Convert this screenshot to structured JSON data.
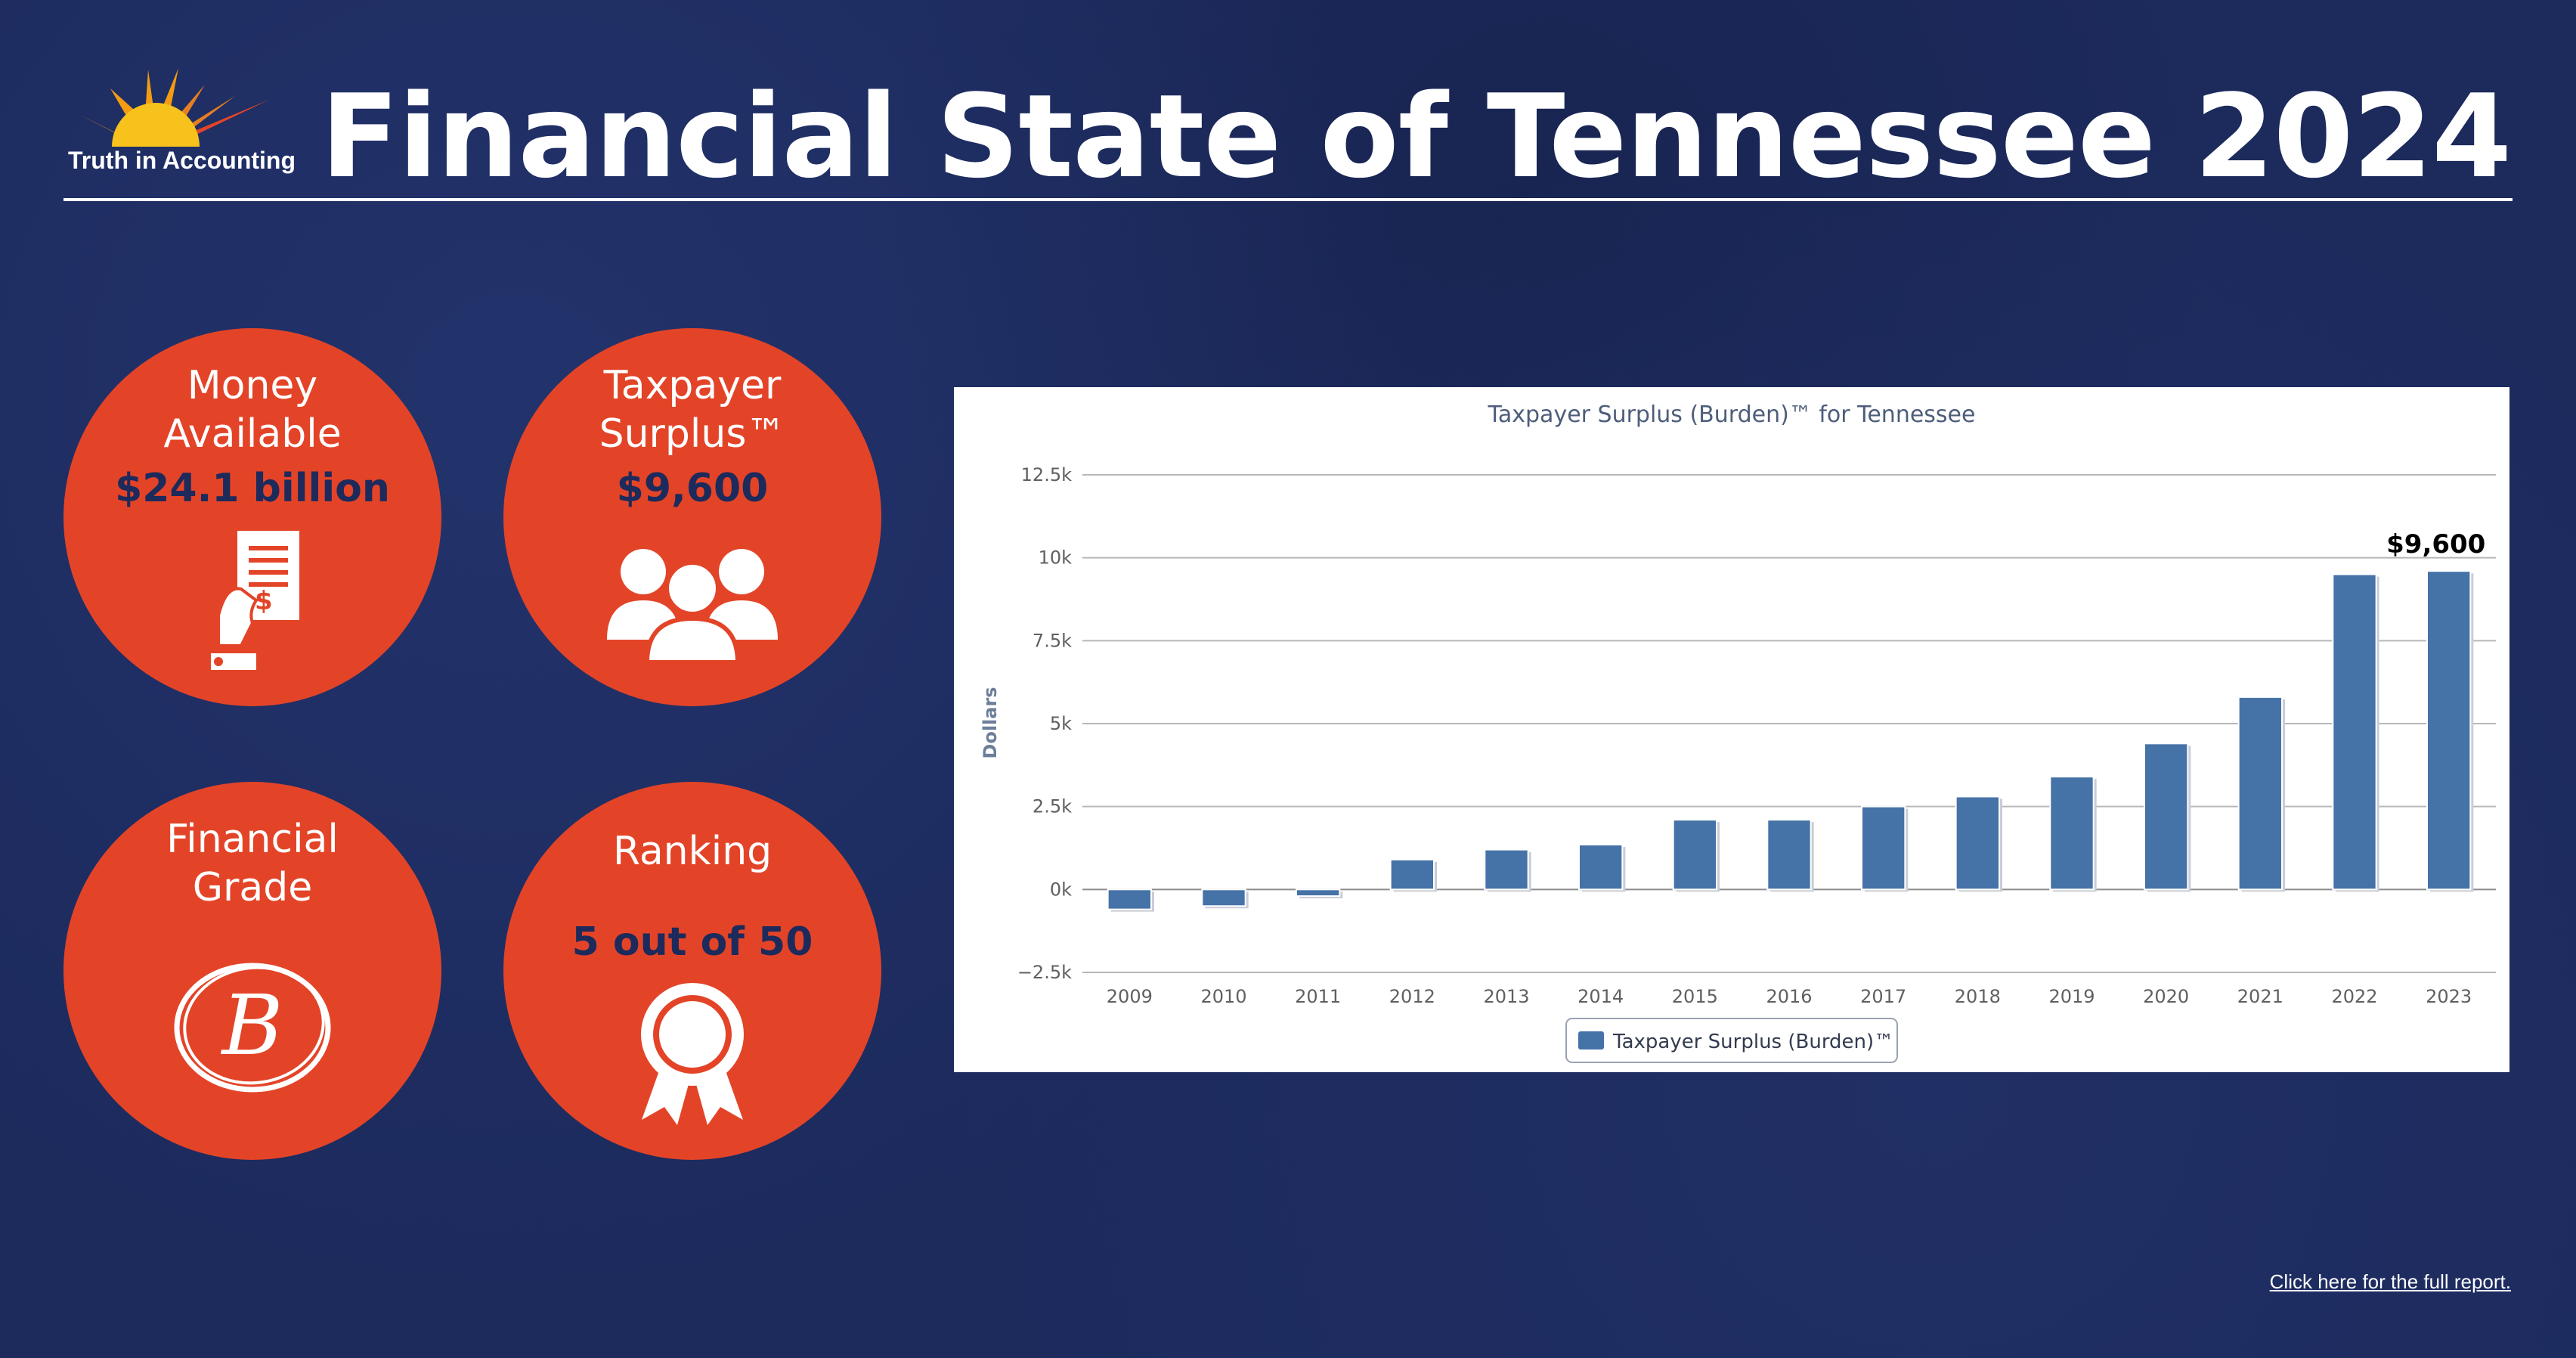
{
  "header": {
    "logo_text": "Truth in Accounting",
    "title": "Financial State of Tennessee 2024"
  },
  "stats": {
    "money_available": {
      "label_line1": "Money",
      "label_line2": "Available",
      "value": "$24.1 billion",
      "icon": "invoice-hand-icon"
    },
    "taxpayer_surplus": {
      "label_line1": "Taxpayer",
      "label_line2": "Surplus™",
      "value": "$9,600",
      "icon": "people-group-icon"
    },
    "financial_grade": {
      "label_line1": "Financial",
      "label_line2": "Grade",
      "grade_letter": "B",
      "icon": "grade-b-icon"
    },
    "ranking": {
      "label": "Ranking",
      "value": "5 out of 50",
      "icon": "award-ribbon-icon"
    }
  },
  "colors": {
    "accent_orange": "#e34428",
    "navy": "#1c2a5c",
    "bar_blue": "#4572a7"
  },
  "chart_data": {
    "type": "bar",
    "title": "Taxpayer Surplus (Burden)™ for Tennessee",
    "ylabel": "Dollars",
    "xlabel": "",
    "categories": [
      "2009",
      "2010",
      "2011",
      "2012",
      "2013",
      "2014",
      "2015",
      "2016",
      "2017",
      "2018",
      "2019",
      "2020",
      "2021",
      "2022",
      "2023"
    ],
    "series": [
      {
        "name": "Taxpayer Surplus (Burden)™",
        "values": [
          -600,
          -500,
          -200,
          900,
          1200,
          1350,
          2100,
          2100,
          2500,
          2800,
          3400,
          4400,
          5800,
          9500,
          9600
        ]
      }
    ],
    "ylim": [
      -2500,
      12500
    ],
    "yticks": [
      -2500,
      0,
      2500,
      5000,
      7500,
      10000,
      12500
    ],
    "ytick_labels": [
      "−2.5k",
      "0k",
      "2.5k",
      "5k",
      "7.5k",
      "10k",
      "12.5k"
    ],
    "data_label": {
      "category": "2023",
      "text": "$9,600"
    },
    "grid": true,
    "legend_position": "bottom-center"
  },
  "footer": {
    "report_link": "Click here for the full report."
  }
}
